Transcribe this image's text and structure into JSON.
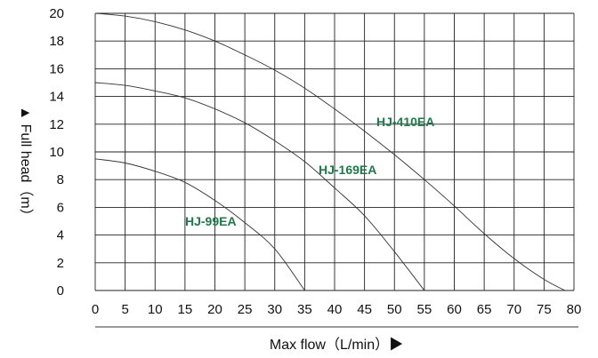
{
  "chart_data": {
    "type": "line",
    "xlabel": "Max flow（L/min）▶",
    "ylabel": "▲ Full head（m）",
    "xlim": [
      0,
      80
    ],
    "ylim": [
      0,
      20
    ],
    "x_ticks": [
      0,
      5,
      10,
      15,
      20,
      25,
      30,
      35,
      40,
      45,
      50,
      55,
      60,
      65,
      70,
      75,
      80
    ],
    "y_ticks": [
      0,
      2,
      4,
      6,
      8,
      10,
      12,
      14,
      16,
      18,
      20
    ],
    "grid": true,
    "series": [
      {
        "name": "HJ-410EA",
        "x": [
          0,
          5,
          10,
          15,
          20,
          25,
          30,
          35,
          40,
          45,
          50,
          55,
          60,
          65,
          70,
          75,
          78.5
        ],
        "y": [
          20,
          19.8,
          19.4,
          18.8,
          18.0,
          17.0,
          15.9,
          14.6,
          13.1,
          11.5,
          9.8,
          8.0,
          6.1,
          4.1,
          2.3,
          0.8,
          0
        ]
      },
      {
        "name": "HJ-169EA",
        "x": [
          0,
          5,
          10,
          15,
          20,
          25,
          30,
          35,
          40,
          45,
          50,
          55
        ],
        "y": [
          15,
          14.8,
          14.4,
          13.9,
          13.1,
          12.1,
          10.8,
          9.3,
          7.4,
          5.4,
          2.8,
          0
        ]
      },
      {
        "name": "HJ-99EA",
        "x": [
          0,
          5,
          10,
          15,
          20,
          25,
          30,
          35
        ],
        "y": [
          9.5,
          9.2,
          8.6,
          7.8,
          6.5,
          4.9,
          3.0,
          0
        ]
      }
    ]
  }
}
